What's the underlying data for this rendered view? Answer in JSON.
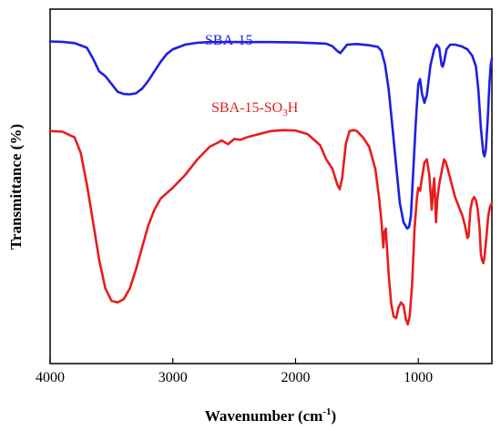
{
  "chart_data": {
    "type": "line",
    "xlabel": "Wavenumber (cm",
    "xlabel_sup": "-1",
    "xlabel_close": ")",
    "ylabel": "Transmittance (%)",
    "xlim": [
      4000,
      400
    ],
    "ylim": [
      0,
      100
    ],
    "x_ticks": [
      4000,
      3000,
      2000,
      1000
    ],
    "x_tick_labels": [
      "4000",
      "3000",
      "2000",
      "1000"
    ],
    "y_ticks_labeled": false,
    "grid": false,
    "series": [
      {
        "name": "SBA-15",
        "label_html_parts": [
          "SBA-15"
        ],
        "color": "#1f1fe0",
        "points": [
          [
            4000,
            95.5
          ],
          [
            3900,
            95.4
          ],
          [
            3800,
            95.0
          ],
          [
            3700,
            93.5
          ],
          [
            3650,
            90.0
          ],
          [
            3600,
            86.0
          ],
          [
            3550,
            84.5
          ],
          [
            3500,
            82.0
          ],
          [
            3450,
            79.5
          ],
          [
            3400,
            78.8
          ],
          [
            3350,
            78.7
          ],
          [
            3300,
            79.0
          ],
          [
            3250,
            80.5
          ],
          [
            3200,
            83.0
          ],
          [
            3150,
            86.0
          ],
          [
            3100,
            89.0
          ],
          [
            3050,
            91.5
          ],
          [
            3000,
            93.0
          ],
          [
            2900,
            94.5
          ],
          [
            2800,
            95.1
          ],
          [
            2700,
            95.3
          ],
          [
            2500,
            95.3
          ],
          [
            2200,
            95.3
          ],
          [
            2000,
            95.2
          ],
          [
            1850,
            95.0
          ],
          [
            1750,
            94.8
          ],
          [
            1700,
            94.0
          ],
          [
            1660,
            92.5
          ],
          [
            1635,
            91.8
          ],
          [
            1610,
            93.0
          ],
          [
            1580,
            94.5
          ],
          [
            1500,
            94.7
          ],
          [
            1400,
            94.3
          ],
          [
            1330,
            93.8
          ],
          [
            1300,
            92.5
          ],
          [
            1270,
            88.0
          ],
          [
            1240,
            80.0
          ],
          [
            1210,
            68.0
          ],
          [
            1180,
            56.0
          ],
          [
            1150,
            44.0
          ],
          [
            1120,
            38.0
          ],
          [
            1090,
            36.0
          ],
          [
            1075,
            36.5
          ],
          [
            1060,
            40.0
          ],
          [
            1040,
            55.0
          ],
          [
            1020,
            70.0
          ],
          [
            1000,
            82.0
          ],
          [
            985,
            83.5
          ],
          [
            970,
            79.0
          ],
          [
            950,
            76.0
          ],
          [
            930,
            78.5
          ],
          [
            900,
            88.0
          ],
          [
            870,
            93.0
          ],
          [
            850,
            94.5
          ],
          [
            830,
            93.5
          ],
          [
            810,
            88.0
          ],
          [
            800,
            87.5
          ],
          [
            790,
            89.0
          ],
          [
            770,
            93.0
          ],
          [
            740,
            94.5
          ],
          [
            700,
            94.5
          ],
          [
            650,
            94.0
          ],
          [
            600,
            93.0
          ],
          [
            560,
            91.0
          ],
          [
            530,
            87.5
          ],
          [
            510,
            80.0
          ],
          [
            490,
            68.0
          ],
          [
            470,
            60.0
          ],
          [
            460,
            59.0
          ],
          [
            450,
            61.0
          ],
          [
            435,
            70.0
          ],
          [
            420,
            82.0
          ],
          [
            410,
            88.0
          ],
          [
            400,
            90.0
          ]
        ]
      },
      {
        "name": "SBA-15-SO3H",
        "label_html_parts": [
          "SBA-15-SO",
          "3",
          "H"
        ],
        "color": "#e81c1c",
        "points": [
          [
            4000,
            67.0
          ],
          [
            3900,
            66.8
          ],
          [
            3800,
            65.0
          ],
          [
            3750,
            60.0
          ],
          [
            3700,
            50.0
          ],
          [
            3650,
            38.0
          ],
          [
            3600,
            26.0
          ],
          [
            3550,
            17.0
          ],
          [
            3500,
            13.0
          ],
          [
            3450,
            12.5
          ],
          [
            3400,
            13.5
          ],
          [
            3350,
            17.0
          ],
          [
            3300,
            23.0
          ],
          [
            3250,
            30.0
          ],
          [
            3200,
            37.0
          ],
          [
            3150,
            42.0
          ],
          [
            3100,
            45.5
          ],
          [
            3000,
            49.0
          ],
          [
            2900,
            53.0
          ],
          [
            2800,
            58.0
          ],
          [
            2700,
            62.0
          ],
          [
            2640,
            63.2
          ],
          [
            2600,
            64.0
          ],
          [
            2550,
            62.8
          ],
          [
            2500,
            64.5
          ],
          [
            2450,
            64.2
          ],
          [
            2400,
            65.0
          ],
          [
            2300,
            66.0
          ],
          [
            2200,
            67.0
          ],
          [
            2100,
            67.3
          ],
          [
            2000,
            67.2
          ],
          [
            1900,
            66.0
          ],
          [
            1800,
            62.5
          ],
          [
            1750,
            58.0
          ],
          [
            1700,
            55.0
          ],
          [
            1660,
            50.0
          ],
          [
            1640,
            48.5
          ],
          [
            1620,
            52.0
          ],
          [
            1590,
            63.0
          ],
          [
            1560,
            67.0
          ],
          [
            1530,
            67.3
          ],
          [
            1500,
            67.0
          ],
          [
            1450,
            65.0
          ],
          [
            1400,
            62.0
          ],
          [
            1350,
            55.0
          ],
          [
            1320,
            46.0
          ],
          [
            1300,
            38.0
          ],
          [
            1285,
            30.0
          ],
          [
            1275,
            35.0
          ],
          [
            1265,
            36.0
          ],
          [
            1255,
            30.0
          ],
          [
            1240,
            21.0
          ],
          [
            1220,
            12.0
          ],
          [
            1200,
            8.0
          ],
          [
            1180,
            7.5
          ],
          [
            1160,
            11.0
          ],
          [
            1140,
            12.5
          ],
          [
            1120,
            11.5
          ],
          [
            1100,
            7.0
          ],
          [
            1085,
            5.5
          ],
          [
            1070,
            8.0
          ],
          [
            1050,
            18.0
          ],
          [
            1030,
            36.0
          ],
          [
            1010,
            46.0
          ],
          [
            1000,
            49.0
          ],
          [
            985,
            48.0
          ],
          [
            970,
            52.0
          ],
          [
            950,
            57.0
          ],
          [
            930,
            58.0
          ],
          [
            910,
            53.0
          ],
          [
            890,
            42.0
          ],
          [
            880,
            48.0
          ],
          [
            870,
            52.0
          ],
          [
            855,
            38.0
          ],
          [
            845,
            45.0
          ],
          [
            830,
            50.0
          ],
          [
            815,
            53.0
          ],
          [
            800,
            56.0
          ],
          [
            790,
            58.0
          ],
          [
            775,
            57.0
          ],
          [
            760,
            55.0
          ],
          [
            740,
            52.0
          ],
          [
            720,
            49.0
          ],
          [
            700,
            46.0
          ],
          [
            680,
            44.0
          ],
          [
            660,
            42.0
          ],
          [
            640,
            40.0
          ],
          [
            620,
            37.0
          ],
          [
            600,
            33.0
          ],
          [
            590,
            33.5
          ],
          [
            575,
            42.0
          ],
          [
            560,
            45.0
          ],
          [
            545,
            46.0
          ],
          [
            530,
            45.0
          ],
          [
            515,
            42.0
          ],
          [
            500,
            36.0
          ],
          [
            490,
            28.0
          ],
          [
            480,
            26.0
          ],
          [
            470,
            25.0
          ],
          [
            460,
            27.0
          ],
          [
            445,
            33.0
          ],
          [
            430,
            40.0
          ],
          [
            415,
            43.0
          ],
          [
            400,
            44.0
          ]
        ]
      }
    ]
  }
}
